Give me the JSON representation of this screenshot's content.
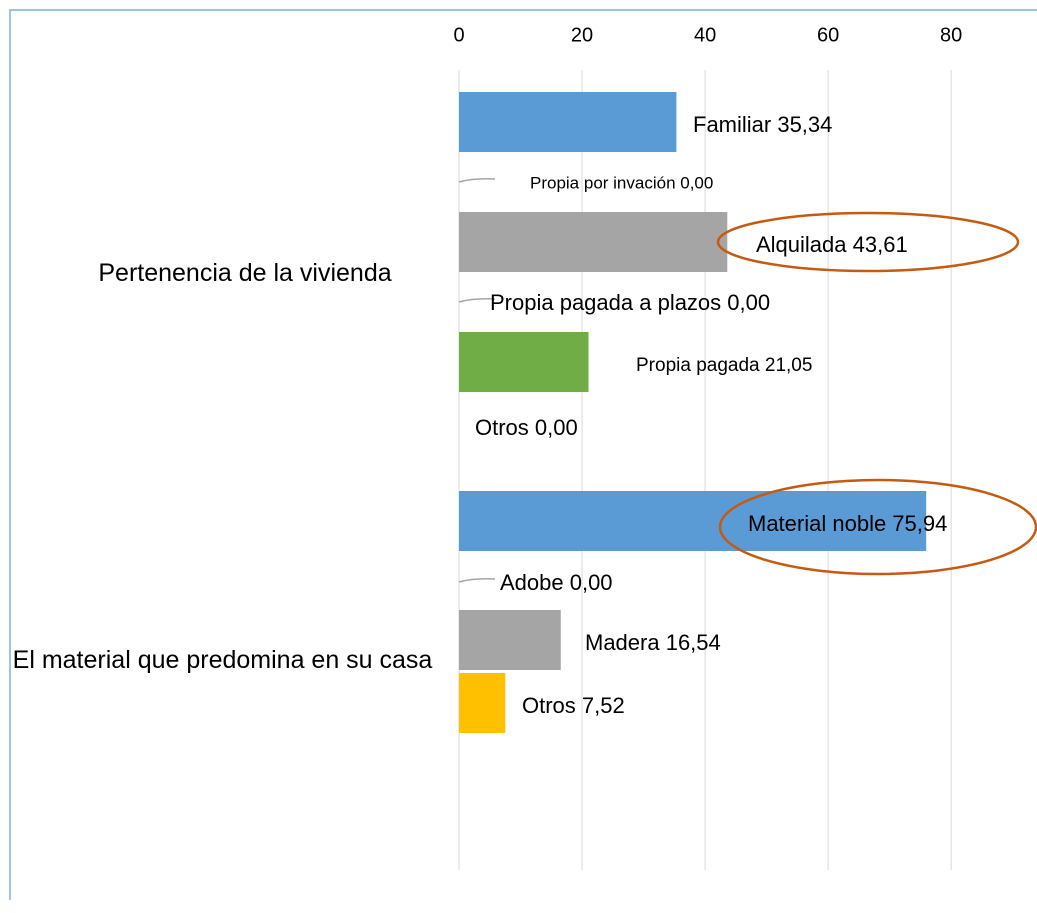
{
  "chart_data": {
    "type": "bar",
    "orientation": "horizontal",
    "xlim": [
      0,
      92
    ],
    "xticks": [
      0,
      20,
      40,
      60,
      80
    ],
    "grid": true,
    "groups": [
      {
        "label": "Pertenencia de la vivienda",
        "values": [
          35.34,
          0,
          43.61,
          0,
          21.05,
          0
        ],
        "value_labels": [
          "Familiar 35,34",
          "Propia por invación 0,00",
          "Alquilada 43,61",
          "Propia pagada a plazos 0,00",
          "Propia pagada 21,05",
          "Otros 0,00"
        ],
        "colors": [
          "#5b9bd5",
          "#a5a5a5",
          "#a5a5a5",
          "#a5a5a5",
          "#70ad47",
          "#a5a5a5"
        ]
      },
      {
        "label": "El material que predomina en su casa",
        "values": [
          75.94,
          0,
          16.54,
          7.52
        ],
        "value_labels": [
          "Material noble  75,94",
          "Adobe   0,00",
          "Madera   16,54",
          "Otros 7,52"
        ],
        "colors": [
          "#5b9bd5",
          "#a5a5a5",
          "#a5a5a5",
          "#ffc000"
        ]
      }
    ]
  }
}
